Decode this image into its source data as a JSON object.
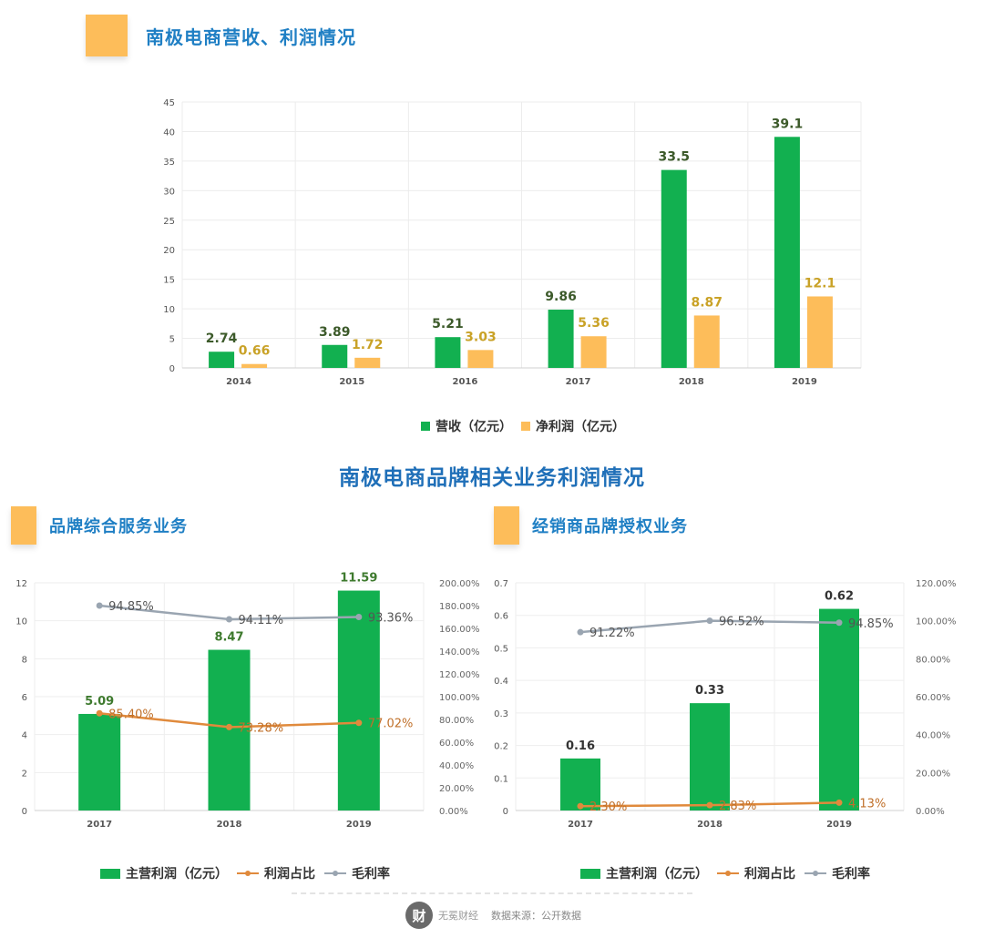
{
  "header": {
    "title": "南极电商营收、利润情况"
  },
  "main_title": "南极电商品牌相关业务利润情况",
  "left_section": {
    "title": "品牌综合服务业务"
  },
  "right_section": {
    "title": "经销商品牌授权业务"
  },
  "legend_top": {
    "revenue": "营收（亿元）",
    "profit": "净利润（亿元）"
  },
  "legend_bottom": {
    "bar": "主营利润（亿元）",
    "ratio": "利润占比",
    "margin": "毛利率"
  },
  "footer": {
    "brand": "无冕财经",
    "logo_char": "财",
    "source": "数据来源：公开数据"
  },
  "colors": {
    "green": "#12b050",
    "orange": "#fdbd5a",
    "blue_title": "#1f7fc4",
    "line_orange": "#e08a3c",
    "line_gray": "#9aa5b1",
    "green_label": "#3c5a2a",
    "orange_label": "#c9a227"
  },
  "chart_data": [
    {
      "type": "bar",
      "title": "南极电商营收、利润情况",
      "categories": [
        "2014",
        "2015",
        "2016",
        "2017",
        "2018",
        "2019"
      ],
      "series": [
        {
          "name": "营收（亿元）",
          "values": [
            2.74,
            3.89,
            5.21,
            9.86,
            33.5,
            39.1
          ],
          "labels": [
            "2.74",
            "3.89",
            "5.21",
            "9.86",
            "33.5",
            "39.1"
          ]
        },
        {
          "name": "净利润（亿元）",
          "values": [
            0.66,
            1.72,
            3.03,
            5.36,
            8.87,
            12.1
          ],
          "labels": [
            "0.66",
            "1.72",
            "3.03",
            "5.36",
            "8.87",
            "12.1"
          ]
        }
      ],
      "yticks": [
        "0",
        "5",
        "10",
        "15",
        "20",
        "25",
        "30",
        "35",
        "40",
        "45"
      ],
      "ylim": [
        0,
        45
      ],
      "grid": true,
      "legend_position": "bottom"
    },
    {
      "type": "bar+line",
      "title": "品牌综合服务业务",
      "categories": [
        "2017",
        "2018",
        "2019"
      ],
      "series": [
        {
          "name": "主营利润（亿元）",
          "axis": "left",
          "values": [
            5.09,
            8.47,
            11.59
          ],
          "labels": [
            "5.09",
            "8.47",
            "11.59"
          ]
        },
        {
          "name": "利润占比",
          "axis": "right",
          "values": [
            85.4,
            73.28,
            77.02
          ],
          "labels": [
            "85.40%",
            "73.28%",
            "77.02%"
          ],
          "plot_pct": [
            85.4,
            73.28,
            77.02
          ]
        },
        {
          "name": "毛利率",
          "axis": "right",
          "values": [
            94.85,
            94.11,
            93.36
          ],
          "labels": [
            "94.85%",
            "94.11%",
            "93.36%"
          ],
          "plot_pct": [
            180,
            168,
            170
          ]
        }
      ],
      "yticks_left": [
        "0",
        "2",
        "4",
        "6",
        "8",
        "10",
        "12"
      ],
      "ylim_left": [
        0,
        12
      ],
      "yticks_right": [
        "0.00%",
        "20.00%",
        "40.00%",
        "60.00%",
        "80.00%",
        "100.00%",
        "120.00%",
        "140.00%",
        "160.00%",
        "180.00%",
        "200.00%"
      ],
      "ylim_right": [
        0,
        200
      ],
      "legend_position": "bottom"
    },
    {
      "type": "bar+line",
      "title": "经销商品牌授权业务",
      "categories": [
        "2017",
        "2018",
        "2019"
      ],
      "series": [
        {
          "name": "主营利润（亿元）",
          "axis": "left",
          "values": [
            0.16,
            0.33,
            0.62
          ],
          "labels": [
            "0.16",
            "0.33",
            "0.62"
          ]
        },
        {
          "name": "利润占比",
          "axis": "right",
          "values": [
            2.3,
            2.83,
            4.13
          ],
          "labels": [
            "2.30%",
            "2.83%",
            "4.13%"
          ]
        },
        {
          "name": "毛利率",
          "axis": "right",
          "values": [
            91.22,
            96.52,
            94.85
          ],
          "labels": [
            "91.22%",
            "96.52%",
            "94.85%"
          ],
          "plot_pct": [
            94,
            100,
            99
          ]
        }
      ],
      "yticks_left": [
        "0",
        "0.1",
        "0.2",
        "0.3",
        "0.4",
        "0.5",
        "0.6",
        "0.7"
      ],
      "ylim_left": [
        0,
        0.7
      ],
      "yticks_right": [
        "0.00%",
        "20.00%",
        "40.00%",
        "60.00%",
        "80.00%",
        "100.00%",
        "120.00%"
      ],
      "ylim_right": [
        0,
        120
      ],
      "legend_position": "bottom"
    }
  ]
}
